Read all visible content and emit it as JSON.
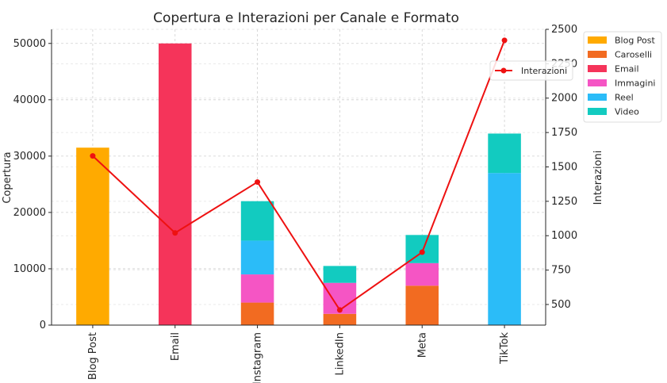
{
  "chart_data": {
    "type": "bar",
    "title": "Copertura e Interazioni per Canale e Formato",
    "xlabel": "",
    "ylabel": "Copertura",
    "y2label": "Interazioni",
    "categories": [
      "Blog Post",
      "Email",
      "Instagram",
      "LinkedIn",
      "Meta",
      "TikTok"
    ],
    "stacked": true,
    "ylim": [
      0,
      52500
    ],
    "y_ticks": [
      0,
      10000,
      20000,
      30000,
      40000,
      50000
    ],
    "y2lim": [
      350,
      2500
    ],
    "y2_ticks": [
      500,
      750,
      1000,
      1250,
      1500,
      1750,
      2000,
      2250,
      2500
    ],
    "y2_tick_labels": [
      "500",
      "750",
      "1000",
      "1250",
      "1500",
      "1750",
      "2000",
      "2250",
      "2500"
    ],
    "grid": true,
    "legend_placement": "top-right",
    "series": [
      {
        "name": "Blog Post",
        "color": "#FFAA00",
        "values": [
          31500,
          0,
          0,
          0,
          0,
          0
        ]
      },
      {
        "name": "Caroselli",
        "color": "#F26B21",
        "values": [
          0,
          0,
          4000,
          2000,
          7000,
          0
        ]
      },
      {
        "name": "Email",
        "color": "#F5345A",
        "values": [
          0,
          50000,
          0,
          0,
          0,
          0
        ]
      },
      {
        "name": "Immagini",
        "color": "#F555C4",
        "values": [
          0,
          0,
          5000,
          5500,
          4000,
          0
        ]
      },
      {
        "name": "Reel",
        "color": "#2BBCF8",
        "values": [
          0,
          0,
          6000,
          0,
          0,
          27000
        ]
      },
      {
        "name": "Video",
        "color": "#12CBC0",
        "values": [
          0,
          0,
          7000,
          3000,
          5000,
          7000
        ]
      }
    ],
    "line_series": {
      "name": "Interazioni",
      "color": "#EE1111",
      "axis": "right",
      "values": [
        1580,
        1020,
        1390,
        460,
        880,
        2420
      ]
    }
  }
}
